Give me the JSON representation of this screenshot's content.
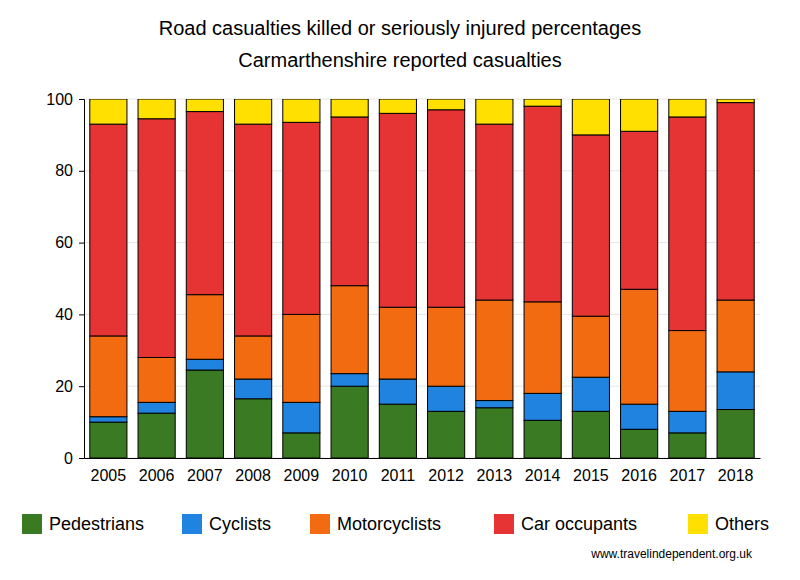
{
  "chart_data": {
    "type": "bar",
    "stacked": true,
    "title": "Road casualties killed or seriously injured percentages",
    "subtitle": "Carmarthenshire reported casualties",
    "annotations": [
      "www.travelindependent.org.uk"
    ],
    "categories": [
      "2005",
      "2006",
      "2007",
      "2008",
      "2009",
      "2010",
      "2011",
      "2012",
      "2013",
      "2014",
      "2015",
      "2016",
      "2017",
      "2018"
    ],
    "series": [
      {
        "name": "Pedestrians",
        "color": "#3a7a23",
        "values": [
          10,
          12.5,
          24.5,
          16.5,
          7,
          20,
          15,
          13,
          14,
          10.5,
          13,
          8,
          7,
          13.5
        ]
      },
      {
        "name": "Cyclists",
        "color": "#2183e0",
        "values": [
          1.5,
          3,
          3,
          5.5,
          8.5,
          3.5,
          7,
          7,
          2,
          7.5,
          9.5,
          7,
          6,
          10.5
        ]
      },
      {
        "name": "Motorcyclists",
        "color": "#f36b10",
        "values": [
          22.5,
          12.5,
          18,
          12,
          24.5,
          24.5,
          20,
          22,
          28,
          25.5,
          17,
          32,
          22.5,
          20
        ]
      },
      {
        "name": "Car occupants",
        "color": "#e63434",
        "values": [
          59,
          66.5,
          51,
          59,
          53.5,
          47,
          54,
          55,
          49,
          54.5,
          50.5,
          44,
          59.5,
          55
        ]
      },
      {
        "name": "Others",
        "color": "#ffe000",
        "values": [
          7,
          5.5,
          3.5,
          7,
          6.5,
          5,
          4,
          3,
          7,
          2,
          10,
          9,
          5,
          1
        ]
      }
    ],
    "ylim": [
      0,
      100
    ],
    "yticks": [
      0,
      20,
      40,
      60,
      80,
      100
    ],
    "grid": true,
    "legend": "bottom"
  }
}
